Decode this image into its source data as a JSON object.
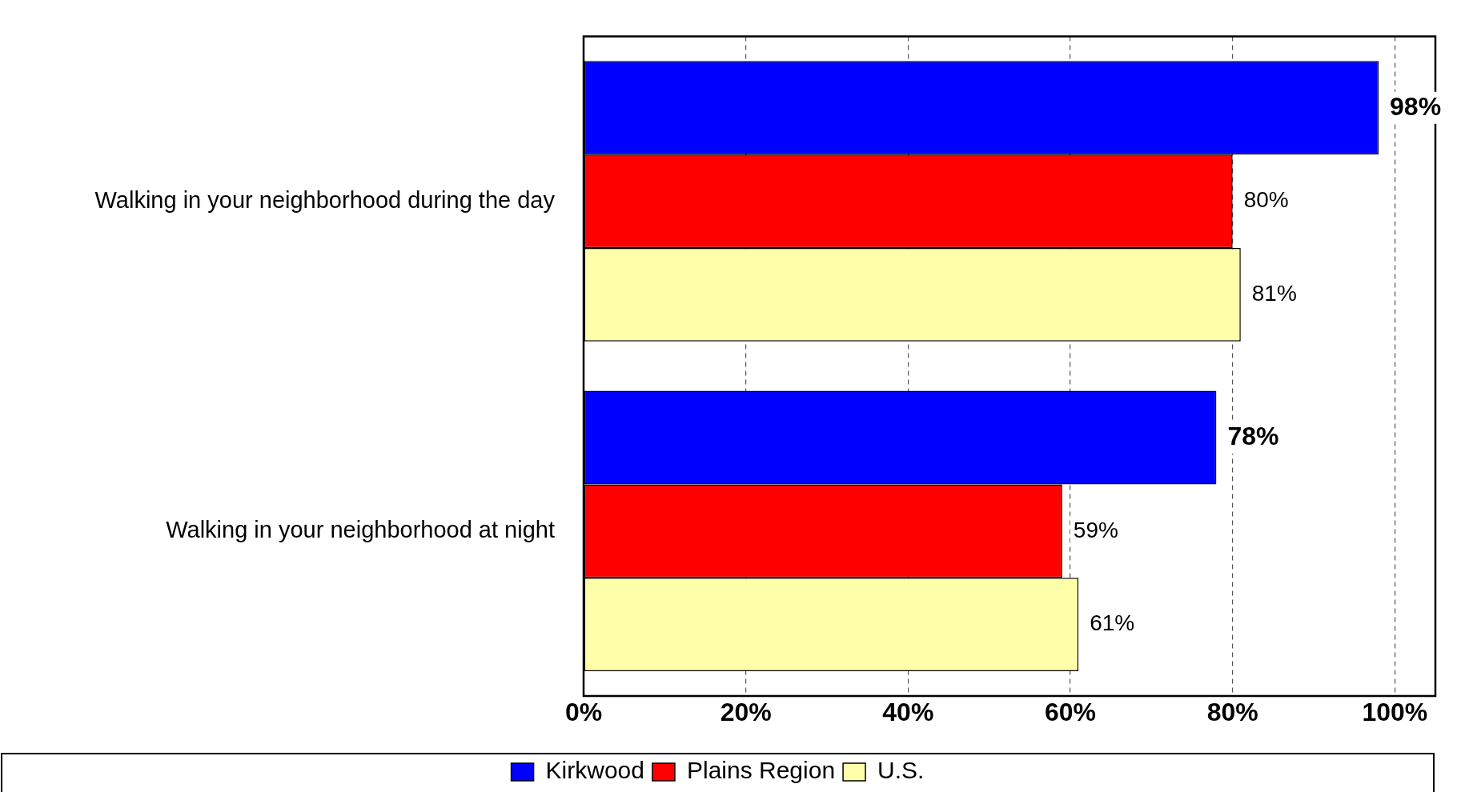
{
  "chart_data": {
    "type": "bar",
    "orientation": "horizontal",
    "categories": [
      "Walking in your neighborhood during the day",
      "Walking in your neighborhood at night"
    ],
    "series": [
      {
        "name": "Kirkwood",
        "color": "#0000ff",
        "values": [
          98,
          78
        ],
        "value_labels": [
          "98%",
          "78%"
        ]
      },
      {
        "name": "Plains Region",
        "color": "#ff0000",
        "values": [
          80,
          59
        ],
        "value_labels": [
          "80%",
          "59%"
        ]
      },
      {
        "name": "U.S.",
        "color": "#ffffaa",
        "values": [
          81,
          61
        ],
        "value_labels": [
          "81%",
          "61%"
        ]
      }
    ],
    "xlim": [
      0,
      105
    ],
    "xticks": [
      {
        "value": 0,
        "label": "0%"
      },
      {
        "value": 20,
        "label": "20%"
      },
      {
        "value": 40,
        "label": "40%"
      },
      {
        "value": 60,
        "label": "60%"
      },
      {
        "value": 80,
        "label": "80%"
      },
      {
        "value": 100,
        "label": "100%"
      }
    ],
    "grid": "x",
    "legend": "bottom"
  }
}
